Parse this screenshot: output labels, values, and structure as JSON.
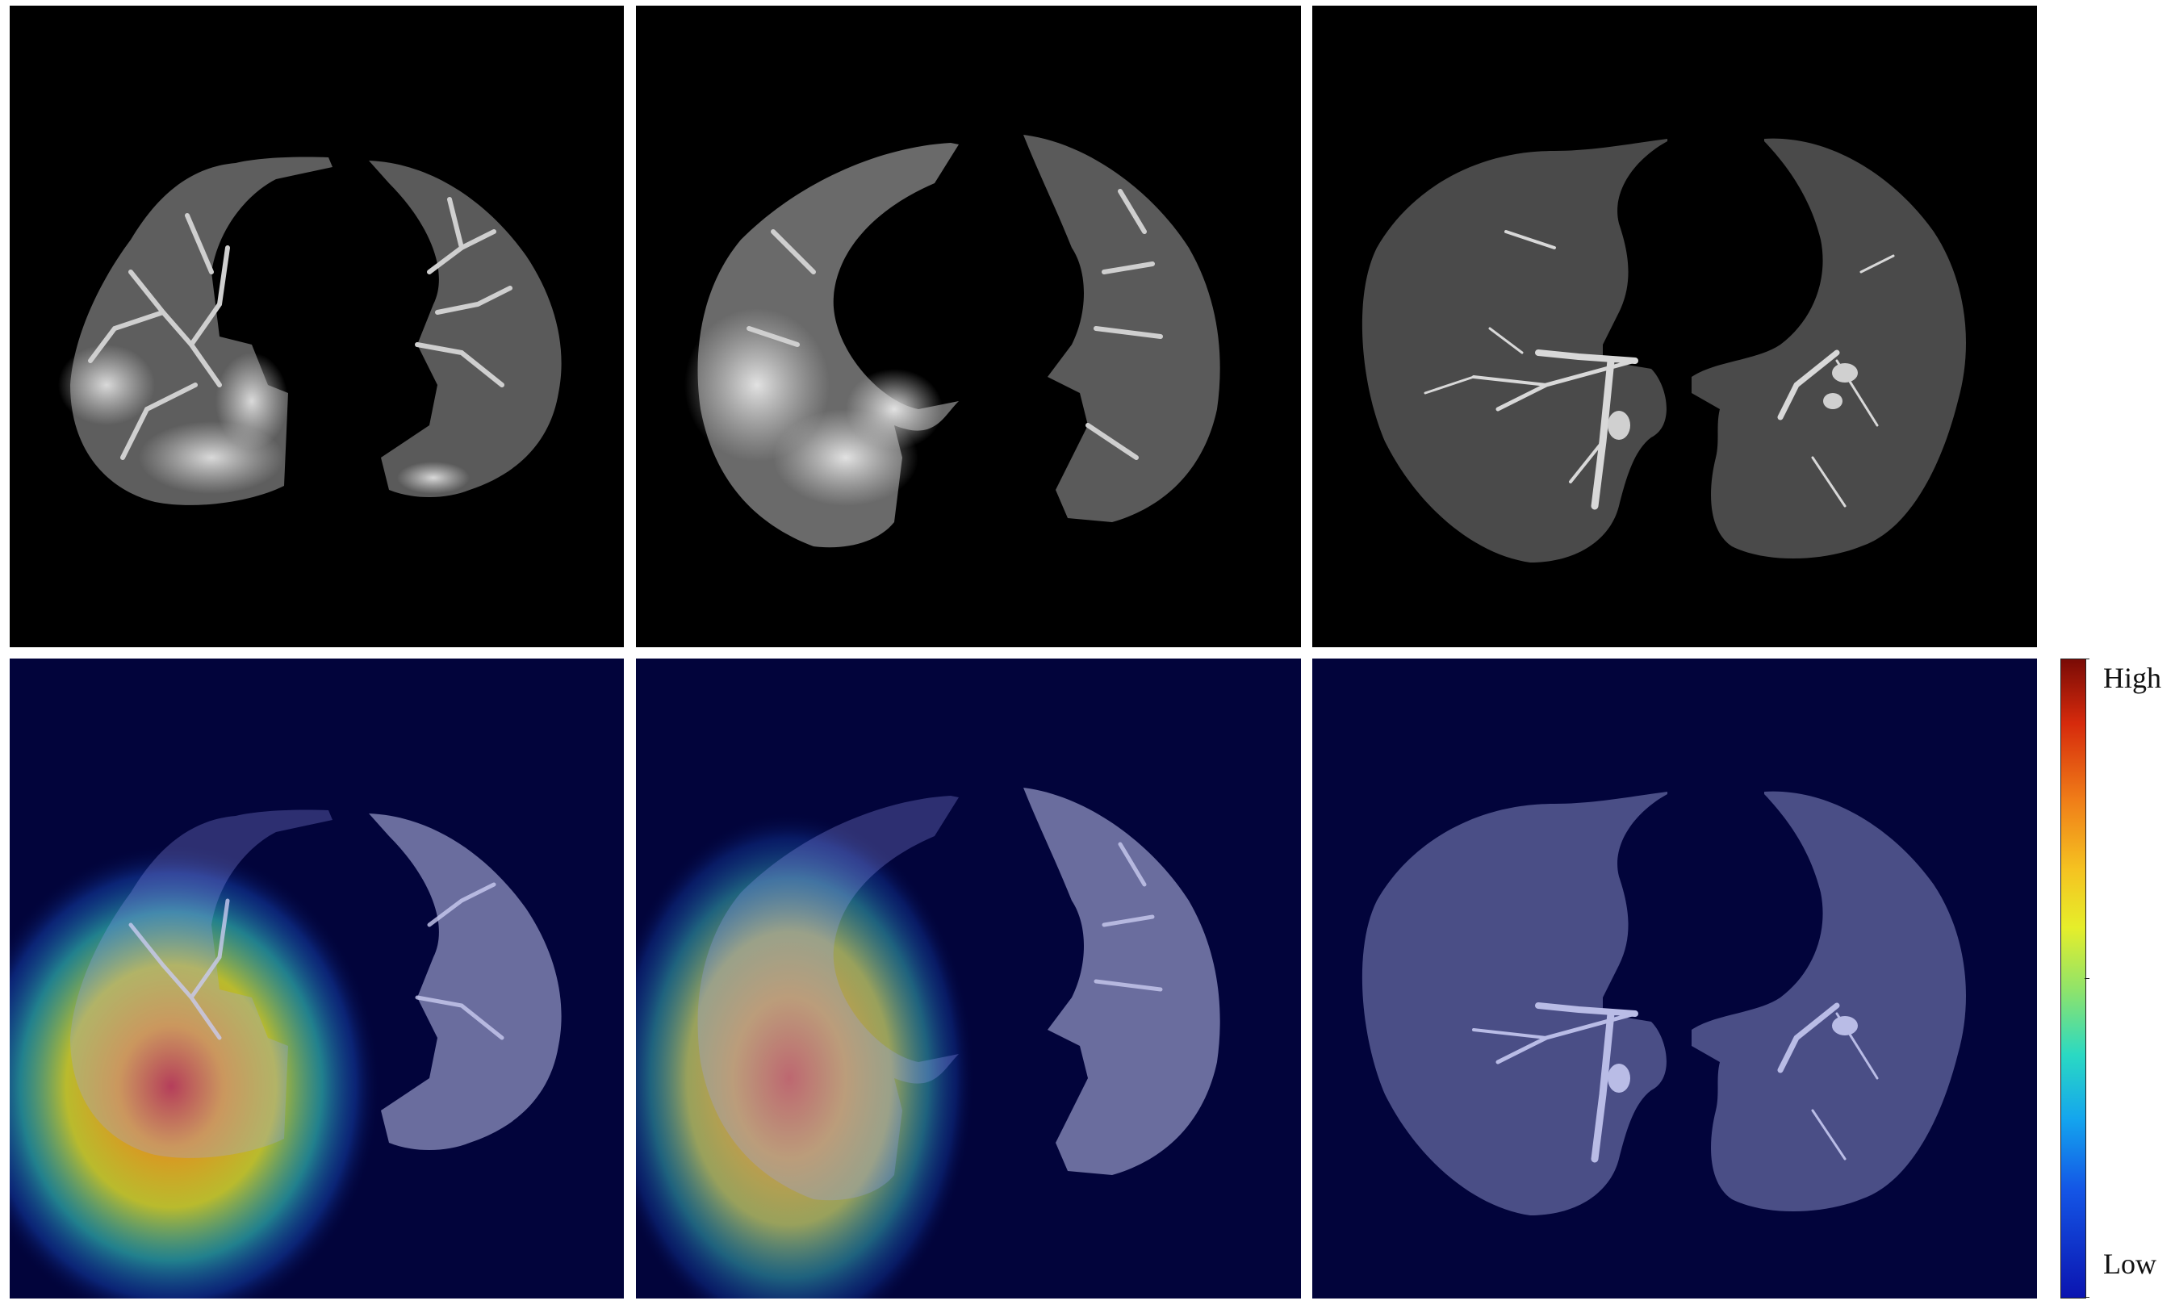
{
  "panels": [
    {
      "name": "ct-slice-1",
      "row": "original"
    },
    {
      "name": "ct-slice-2",
      "row": "original"
    },
    {
      "name": "ct-slice-3",
      "row": "original"
    },
    {
      "name": "heatmap-slice-1",
      "row": "heatmap"
    },
    {
      "name": "heatmap-slice-2",
      "row": "heatmap"
    },
    {
      "name": "heatmap-slice-3",
      "row": "heatmap"
    }
  ],
  "colorbar": {
    "high_label": "High",
    "low_label": "Low",
    "colormap": "jet",
    "colors": {
      "high": "#7a0b06",
      "mid": "#e6ee2a",
      "low": "#0b14b0"
    }
  },
  "colors": {
    "ct_background": "#000000",
    "heatmap_background": "#02043b",
    "lung_tissue": "#5c5c5c",
    "lung_overlay": "#6a6d9e"
  }
}
